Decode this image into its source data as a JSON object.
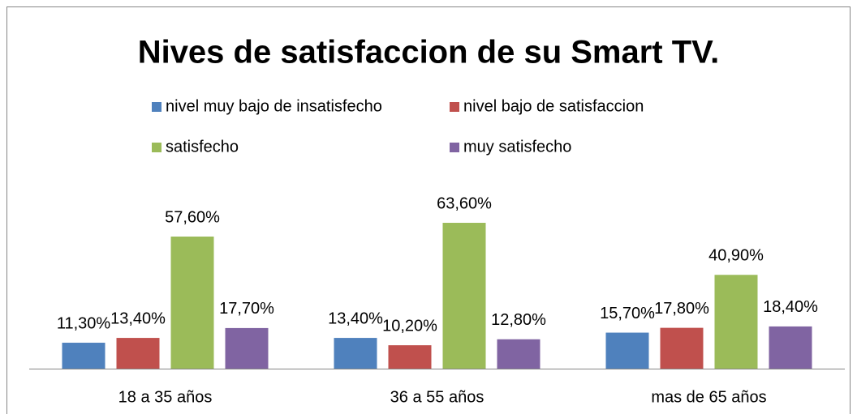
{
  "chart_data": {
    "type": "bar",
    "title": "Nives de satisfaccion de su Smart TV.",
    "categories": [
      "18 a 35 años",
      "36 a 55 años",
      "mas de 65 años"
    ],
    "series": [
      {
        "name": "nivel muy bajo de insatisfecho",
        "color": "#4f81bd",
        "values": [
          11.3,
          13.4,
          15.7
        ],
        "value_labels": [
          "11,30%",
          "13,40%",
          "15,70%"
        ]
      },
      {
        "name": "nivel bajo de satisfaccion",
        "color": "#c0504d",
        "values": [
          13.4,
          10.2,
          17.8
        ],
        "value_labels": [
          "13,40%",
          "10,20%",
          "17,80%"
        ]
      },
      {
        "name": "satisfecho",
        "color": "#9bbb59",
        "values": [
          57.6,
          63.6,
          40.9
        ],
        "value_labels": [
          "57,60%",
          "63,60%",
          "40,90%"
        ]
      },
      {
        "name": "muy satisfecho",
        "color": "#8064a2",
        "values": [
          17.7,
          12.8,
          18.4
        ],
        "value_labels": [
          "17,70%",
          "12,80%",
          "18,40%"
        ]
      }
    ],
    "legend": "top"
  }
}
